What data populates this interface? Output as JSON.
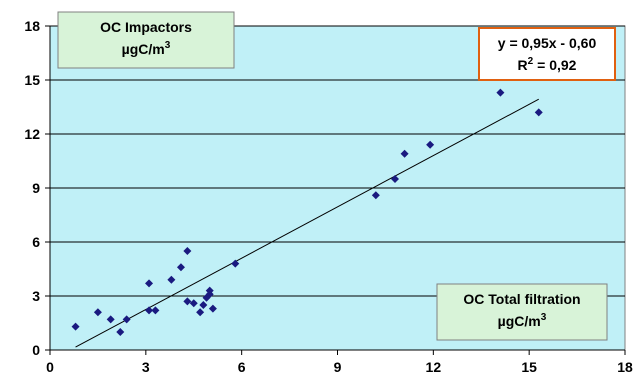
{
  "chart_data": {
    "type": "scatter",
    "title": "",
    "xlabel": "",
    "ylabel": "",
    "xlim": [
      0,
      18
    ],
    "ylim": [
      0,
      18
    ],
    "x_ticks": [
      "0",
      "3",
      "6",
      "9",
      "12",
      "15",
      "18"
    ],
    "y_ticks": [
      "0",
      "3",
      "6",
      "9",
      "12",
      "15",
      "18"
    ],
    "grid": "horizontal",
    "plot_background": "#c0f0f7",
    "marker_color": "#1a1a80",
    "series": [
      {
        "points": [
          {
            "x": 0.8,
            "y": 1.3
          },
          {
            "x": 1.5,
            "y": 2.1
          },
          {
            "x": 1.9,
            "y": 1.7
          },
          {
            "x": 2.2,
            "y": 1.0
          },
          {
            "x": 2.4,
            "y": 1.7
          },
          {
            "x": 3.1,
            "y": 3.7
          },
          {
            "x": 3.1,
            "y": 2.2
          },
          {
            "x": 3.3,
            "y": 2.2
          },
          {
            "x": 3.8,
            "y": 3.9
          },
          {
            "x": 4.1,
            "y": 4.6
          },
          {
            "x": 4.3,
            "y": 5.5
          },
          {
            "x": 4.3,
            "y": 2.7
          },
          {
            "x": 4.5,
            "y": 2.6
          },
          {
            "x": 4.7,
            "y": 2.1
          },
          {
            "x": 4.8,
            "y": 2.5
          },
          {
            "x": 4.9,
            "y": 2.9
          },
          {
            "x": 5.0,
            "y": 3.1
          },
          {
            "x": 5.0,
            "y": 3.3
          },
          {
            "x": 5.1,
            "y": 2.3
          },
          {
            "x": 5.8,
            "y": 4.8
          },
          {
            "x": 10.2,
            "y": 8.6
          },
          {
            "x": 10.8,
            "y": 9.5
          },
          {
            "x": 11.1,
            "y": 10.9
          },
          {
            "x": 11.9,
            "y": 11.4
          },
          {
            "x": 14.1,
            "y": 14.3
          },
          {
            "x": 15.3,
            "y": 13.2
          }
        ]
      }
    ],
    "trendline": {
      "slope": 0.95,
      "intercept": -0.6,
      "x_from": 0.8,
      "x_to": 15.3,
      "color": "#000000"
    },
    "annotations": {
      "y_label_box": {
        "line1": "OC Impactors",
        "line2_base": "µgC/m",
        "line2_sup": "3",
        "fill": "#d8f3d8"
      },
      "x_label_box": {
        "line1": "OC Total filtration",
        "line2_base": "µgC/m",
        "line2_sup": "3",
        "fill": "#d8f3d8"
      },
      "equation_box": {
        "line1": "y = 0,95x - 0,60",
        "line2_a": "R",
        "line2_sup": "2",
        "line2_b": " = 0,92",
        "border": "#e06010"
      }
    }
  }
}
